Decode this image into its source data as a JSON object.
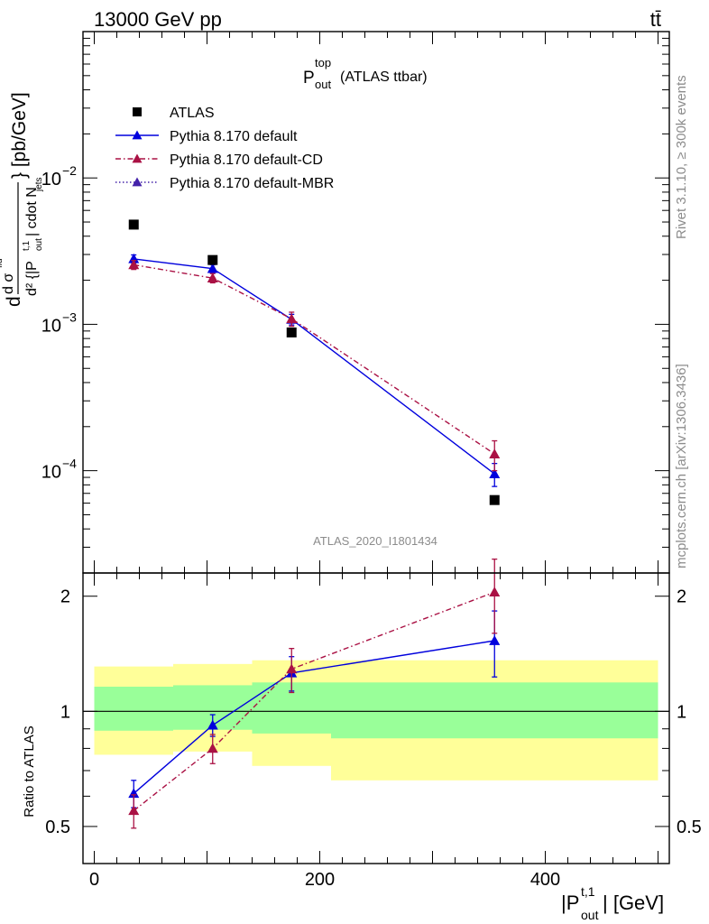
{
  "header": {
    "left": "13000 GeV pp",
    "right": "tt̄"
  },
  "side_labels": {
    "rivet": "Rivet 3.1.10, ≥ 300k events",
    "mcplots": "mcplots.cern.ch [arXiv:1306.3436]"
  },
  "watermark": "ATLAS_2020_I1801434",
  "chart_data": [
    {
      "type": "scatter",
      "title": "P_out^top (ATLAS ttbar)",
      "ylabel": "d²σ^{fid} / d²{|P_out^{t,1}| cdot N_jets} [pb/GeV]",
      "yscale": "log",
      "ylim": [
        2e-05,
        0.1
      ],
      "xlim": [
        -10,
        510
      ],
      "y_ticks": [
        "10^-4",
        "10^-3",
        "10^-2"
      ],
      "legend": "top-left",
      "series": [
        {
          "name": "ATLAS",
          "marker": "square",
          "color": "#000000",
          "points": [
            {
              "x": 35,
              "y": 0.0048
            },
            {
              "x": 105,
              "y": 0.00275
            },
            {
              "x": 175,
              "y": 0.00088
            },
            {
              "x": 355,
              "y": 6.3e-05
            }
          ]
        },
        {
          "name": "Pythia 8.170 default",
          "marker": "triangle",
          "color": "#0000dd",
          "line": "solid",
          "points": [
            {
              "x": 35,
              "y": 0.0028,
              "err": 0.00018
            },
            {
              "x": 105,
              "y": 0.0024,
              "err": 0.00015
            },
            {
              "x": 175,
              "y": 0.00108,
              "err": 9e-05
            },
            {
              "x": 355,
              "y": 9.5e-05,
              "err": 1.7e-05
            }
          ]
        },
        {
          "name": "Pythia 8.170 default-CD",
          "marker": "triangle",
          "color": "#aa1144",
          "line": "dashdot",
          "points": [
            {
              "x": 35,
              "y": 0.00255,
              "err": 0.00018
            },
            {
              "x": 105,
              "y": 0.00207,
              "err": 0.00015
            },
            {
              "x": 175,
              "y": 0.00109,
              "err": 0.00012
            },
            {
              "x": 355,
              "y": 0.00013,
              "err": 3e-05
            }
          ]
        },
        {
          "name": "Pythia 8.170 default-MBR",
          "marker": "triangle",
          "color": "#4422aa",
          "line": "dotted",
          "points": []
        }
      ]
    },
    {
      "type": "scatter",
      "xlabel": "|P_out^{t,1}| [GeV]",
      "ylabel": "Ratio to ATLAS",
      "xlim": [
        -10,
        510
      ],
      "ylim": [
        0.4,
        2.3
      ],
      "x_ticks": [
        0,
        200,
        400
      ],
      "y_ticks": [
        0.5,
        1,
        2
      ],
      "reference": 1,
      "bands": [
        {
          "x0": 0,
          "x1": 70,
          "inner": [
            0.89,
            1.16
          ],
          "outer": [
            0.77,
            1.31
          ]
        },
        {
          "x0": 70,
          "x1": 140,
          "inner": [
            0.895,
            1.17
          ],
          "outer": [
            0.785,
            1.33
          ]
        },
        {
          "x0": 140,
          "x1": 210,
          "inner": [
            0.875,
            1.19
          ],
          "outer": [
            0.72,
            1.36
          ]
        },
        {
          "x0": 210,
          "x1": 500,
          "inner": [
            0.85,
            1.19
          ],
          "outer": [
            0.66,
            1.36
          ]
        }
      ],
      "series": [
        {
          "name": "Pythia 8.170 default",
          "marker": "triangle",
          "color": "#0000dd",
          "line": "solid",
          "points": [
            {
              "x": 35,
              "y": 0.61,
              "err": 0.05
            },
            {
              "x": 105,
              "y": 0.92,
              "err": 0.06
            },
            {
              "x": 175,
              "y": 1.26,
              "err": 0.13
            },
            {
              "x": 355,
              "y": 1.53,
              "err": 0.3
            }
          ]
        },
        {
          "name": "Pythia 8.170 default-CD",
          "marker": "triangle",
          "color": "#aa1144",
          "line": "dashdot",
          "points": [
            {
              "x": 35,
              "y": 0.55,
              "err": 0.055
            },
            {
              "x": 105,
              "y": 0.8,
              "err": 0.07
            },
            {
              "x": 175,
              "y": 1.29,
              "err": 0.17
            },
            {
              "x": 355,
              "y": 2.05,
              "err": 0.45
            }
          ]
        }
      ]
    }
  ]
}
